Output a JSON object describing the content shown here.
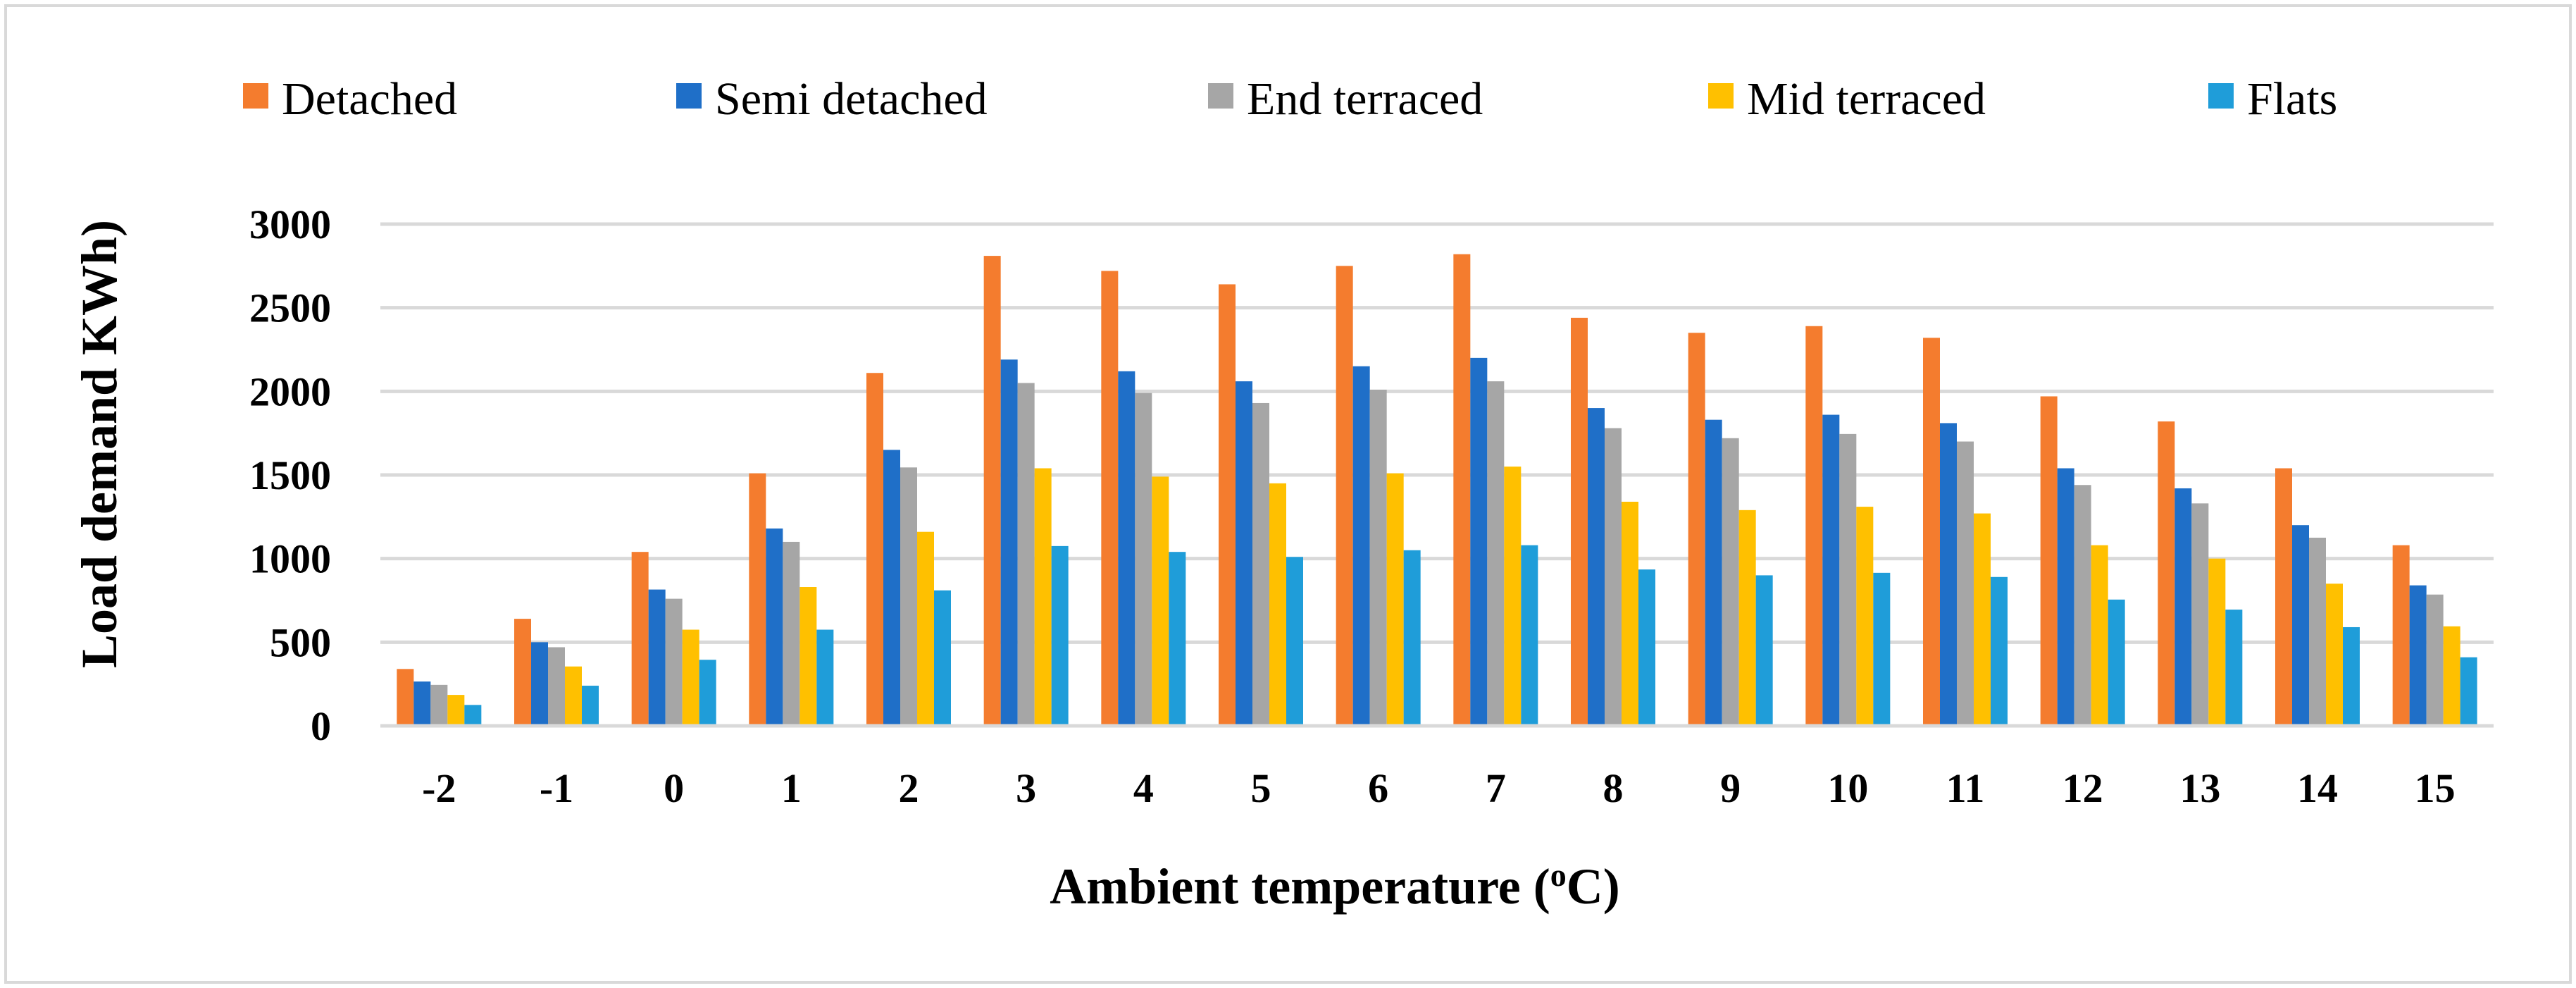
{
  "chart_data": {
    "type": "bar",
    "title": "",
    "xlabel": "Ambient temperature (oC)",
    "xlabel_parts": {
      "prefix": "Ambient temperature (",
      "superscript": "o",
      "suffix": "C)"
    },
    "ylabel": "Load demand KWh)",
    "ylim": [
      0,
      3000
    ],
    "yticks": [
      0,
      500,
      1000,
      1500,
      2000,
      2500,
      3000
    ],
    "grid": true,
    "legend_position": "top",
    "categories": [
      "-2",
      "-1",
      "0",
      "1",
      "2",
      "3",
      "4",
      "5",
      "6",
      "7",
      "8",
      "9",
      "10",
      "11",
      "12",
      "13",
      "14",
      "15"
    ],
    "series": [
      {
        "name": "Detached",
        "color": "#F47C2E",
        "values": [
          340,
          640,
          1040,
          1510,
          2110,
          2810,
          2720,
          2640,
          2750,
          2820,
          2440,
          2350,
          2390,
          2320,
          1970,
          1820,
          1540,
          1080
        ]
      },
      {
        "name": "Semi detached",
        "color": "#1F6FC8",
        "values": [
          265,
          500,
          815,
          1180,
          1650,
          2190,
          2120,
          2060,
          2150,
          2200,
          1900,
          1830,
          1860,
          1810,
          1540,
          1420,
          1200,
          840
        ]
      },
      {
        "name": "End terraced",
        "color": "#A6A6A6",
        "values": [
          245,
          470,
          760,
          1100,
          1545,
          2050,
          1990,
          1930,
          2010,
          2060,
          1780,
          1720,
          1745,
          1700,
          1440,
          1330,
          1125,
          785
        ]
      },
      {
        "name": "Mid terraced",
        "color": "#FFC000",
        "values": [
          185,
          355,
          575,
          830,
          1160,
          1540,
          1490,
          1450,
          1510,
          1550,
          1340,
          1290,
          1310,
          1270,
          1080,
          1000,
          850,
          595
        ]
      },
      {
        "name": "Flats",
        "color": "#1F9DD9",
        "values": [
          125,
          240,
          395,
          575,
          810,
          1075,
          1040,
          1010,
          1050,
          1080,
          935,
          900,
          915,
          890,
          755,
          695,
          590,
          410
        ]
      }
    ]
  }
}
